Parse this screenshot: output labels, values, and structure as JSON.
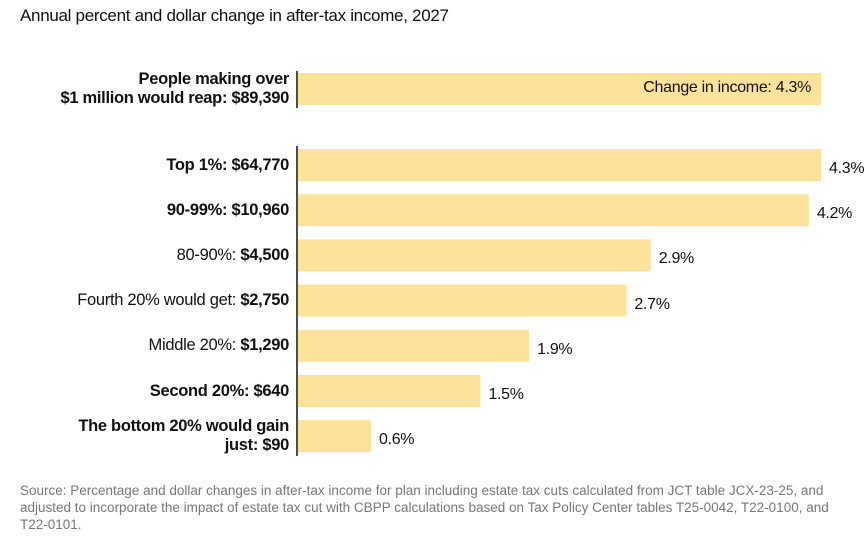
{
  "chart_data": {
    "type": "bar",
    "orientation": "horizontal",
    "title": "Annual percent and dollar change in after-tax income, 2027",
    "categories": [
      [
        "People making over",
        "$1 million would reap:"
      ],
      [
        "Top 1%:"
      ],
      [
        "90-99%:"
      ],
      [
        "80-90%:"
      ],
      [
        "Fourth 20% would get:"
      ],
      [
        "Middle 20%:"
      ],
      [
        "Second 20%:"
      ],
      [
        "The bottom 20% would gain",
        "just:"
      ]
    ],
    "category_bold": [
      true,
      true,
      true,
      false,
      false,
      false,
      true,
      true
    ],
    "dollar_values": [
      89390,
      64770,
      10960,
      4500,
      2750,
      1290,
      640,
      90
    ],
    "dollar_labels": [
      "$89,390",
      "$64,770",
      "$10,960",
      "$4,500",
      "$2,750",
      "$1,290",
      "$640",
      "$90"
    ],
    "values": [
      4.3,
      4.3,
      4.2,
      2.9,
      2.7,
      1.9,
      1.5,
      0.6
    ],
    "value_labels": [
      "Change in income: 4.3%",
      "4.3%",
      "4.2%",
      "2.9%",
      "2.7%",
      "1.9%",
      "1.5%",
      "0.6%"
    ],
    "color": "#fde29c",
    "source": "Source: Percentage and dollar changes in after-tax income for plan including estate tax cuts calculated from JCT table JCX-23-25, and adjusted to incorporate the impact of estate tax cut with CBPP calculations based on Tax Policy Center tables T25-0042, T22-0100, and T22-0101."
  }
}
